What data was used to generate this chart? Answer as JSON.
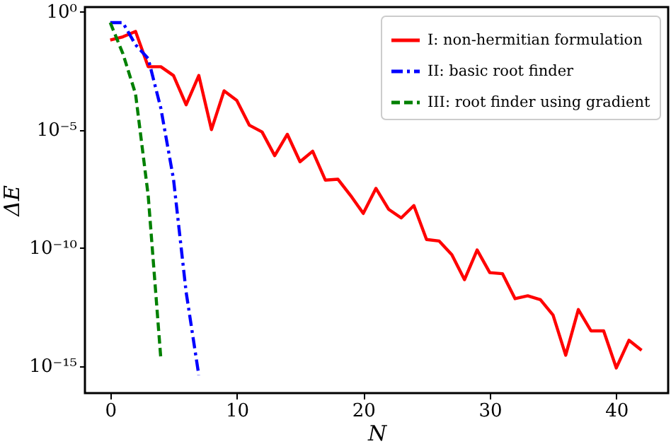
{
  "chart_data": {
    "type": "line",
    "xlabel": "N",
    "ylabel": "ΔE",
    "log": "y",
    "grid": false,
    "legend": "top right",
    "xlim": [
      -2,
      44.1
    ],
    "xticks": [
      0,
      10,
      20,
      30,
      40
    ],
    "ylim": [
      7e-17,
      1.5
    ],
    "yticks": [
      {
        "value": 1,
        "label": "10⁰"
      },
      {
        "value": 1e-05,
        "label": "10⁻⁵"
      },
      {
        "value": 1e-10,
        "label": "10⁻¹⁰"
      },
      {
        "value": 1e-15,
        "label": "10⁻¹⁵"
      }
    ],
    "series": [
      {
        "name": "I: non-hermitian formulation",
        "color": "#ff0000",
        "line_style": "solid",
        "x": [
          0,
          1,
          2,
          3,
          4,
          5,
          6,
          7,
          8,
          9,
          10,
          11,
          12,
          13,
          14,
          15,
          16,
          17,
          18,
          19,
          20,
          21,
          22,
          23,
          24,
          25,
          26,
          27,
          28,
          29,
          30,
          31,
          32,
          33,
          34,
          35,
          36,
          37,
          38,
          39,
          40,
          41,
          42
        ],
        "values": [
          0.06,
          0.083,
          0.14,
          0.0045,
          0.0045,
          0.0019,
          0.00011,
          0.0019,
          9.8e-06,
          0.00043,
          0.00017,
          1.5e-05,
          7.8e-06,
          7.8e-07,
          6.2e-06,
          4.3e-07,
          1.2e-06,
          7.2e-08,
          7.8e-08,
          1.6e-08,
          2.8e-09,
          3.2e-08,
          4.2e-09,
          1.8e-09,
          6e-09,
          2.2e-10,
          1.9e-10,
          5e-11,
          4.4e-12,
          7.9e-11,
          8.7e-12,
          7.9e-12,
          6.9e-13,
          9.1e-13,
          6.3e-13,
          1.4e-13,
          2.8e-15,
          2.4e-13,
          3e-14,
          3e-14,
          8.1e-16,
          1.2e-14,
          4.5e-15
        ]
      },
      {
        "name": "II: basic root finder",
        "color": "#0000ff",
        "line_style": "dashdot",
        "x": [
          0,
          1,
          2,
          3,
          4,
          5,
          6,
          7
        ],
        "values": [
          0.33,
          0.33,
          0.038,
          0.01,
          7.9e-05,
          7.9e-08,
          1.3e-12,
          4e-16
        ]
      },
      {
        "name": "III: root finder using gradient",
        "color": "#008000",
        "line_style": "dashed",
        "x": [
          0,
          1,
          2,
          3,
          4
        ],
        "values": [
          0.33,
          0.016,
          0.00032,
          1.6e-08,
          2e-15
        ]
      }
    ]
  }
}
